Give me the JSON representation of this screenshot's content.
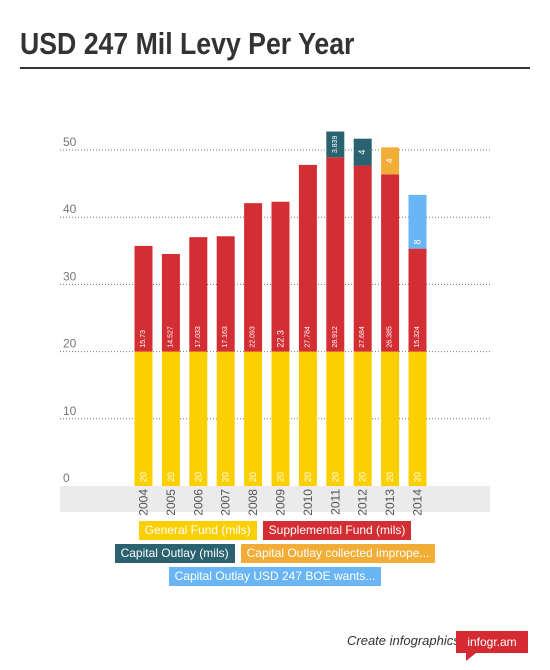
{
  "page": {
    "title": "USD 247 Mil Levy Per Year",
    "footer_text": "Create infographics",
    "brand": "infogr.am"
  },
  "chart_data": {
    "type": "bar",
    "stacked": true,
    "categories": [
      "2004",
      "2005",
      "2006",
      "2007",
      "2008",
      "2009",
      "2010",
      "2011",
      "2012",
      "2013",
      "2014"
    ],
    "ylim": [
      0,
      55
    ],
    "yticks": [
      0,
      10,
      20,
      30,
      40,
      50
    ],
    "grid": true,
    "legend_position": "bottom",
    "series": [
      {
        "name": "General Fund (mils)",
        "color": "#fcd000",
        "values": [
          20,
          20,
          20,
          20,
          20,
          20,
          20,
          20,
          20,
          20,
          20
        ],
        "labels": [
          "20",
          "20",
          "20",
          "20",
          "20",
          "20",
          "20",
          "20",
          "20",
          "20",
          "20"
        ]
      },
      {
        "name": "Supplemental Fund (mils)",
        "color": "#d42e35",
        "values": [
          15.73,
          14.527,
          17.033,
          17.163,
          22.093,
          22.3,
          27.784,
          28.912,
          27.684,
          26.385,
          15.324
        ],
        "labels": [
          "15.73",
          "14.527",
          "17.033",
          "17.163",
          "22.093",
          "22.3",
          "27.784",
          "28.912",
          "27.684",
          "26.385",
          "15.324"
        ]
      },
      {
        "name": "Capital Outlay (mils)",
        "color": "#2a6270",
        "values": [
          null,
          null,
          null,
          null,
          null,
          null,
          null,
          3.839,
          4,
          null,
          null
        ],
        "labels": [
          null,
          null,
          null,
          null,
          null,
          null,
          null,
          "3.839",
          "4",
          null,
          null
        ]
      },
      {
        "name": "Capital Outlay collected impropе...",
        "color": "#f2ad37",
        "values": [
          null,
          null,
          null,
          null,
          null,
          null,
          null,
          null,
          null,
          4,
          null
        ],
        "labels": [
          null,
          null,
          null,
          null,
          null,
          null,
          null,
          null,
          null,
          "4",
          null
        ]
      },
      {
        "name": "Capital Outlay USD 247 BOE wants...",
        "color": "#6ab6f5",
        "values": [
          null,
          null,
          null,
          null,
          null,
          null,
          null,
          null,
          null,
          null,
          8
        ],
        "labels": [
          null,
          null,
          null,
          null,
          null,
          null,
          null,
          null,
          null,
          null,
          "8"
        ]
      }
    ]
  }
}
